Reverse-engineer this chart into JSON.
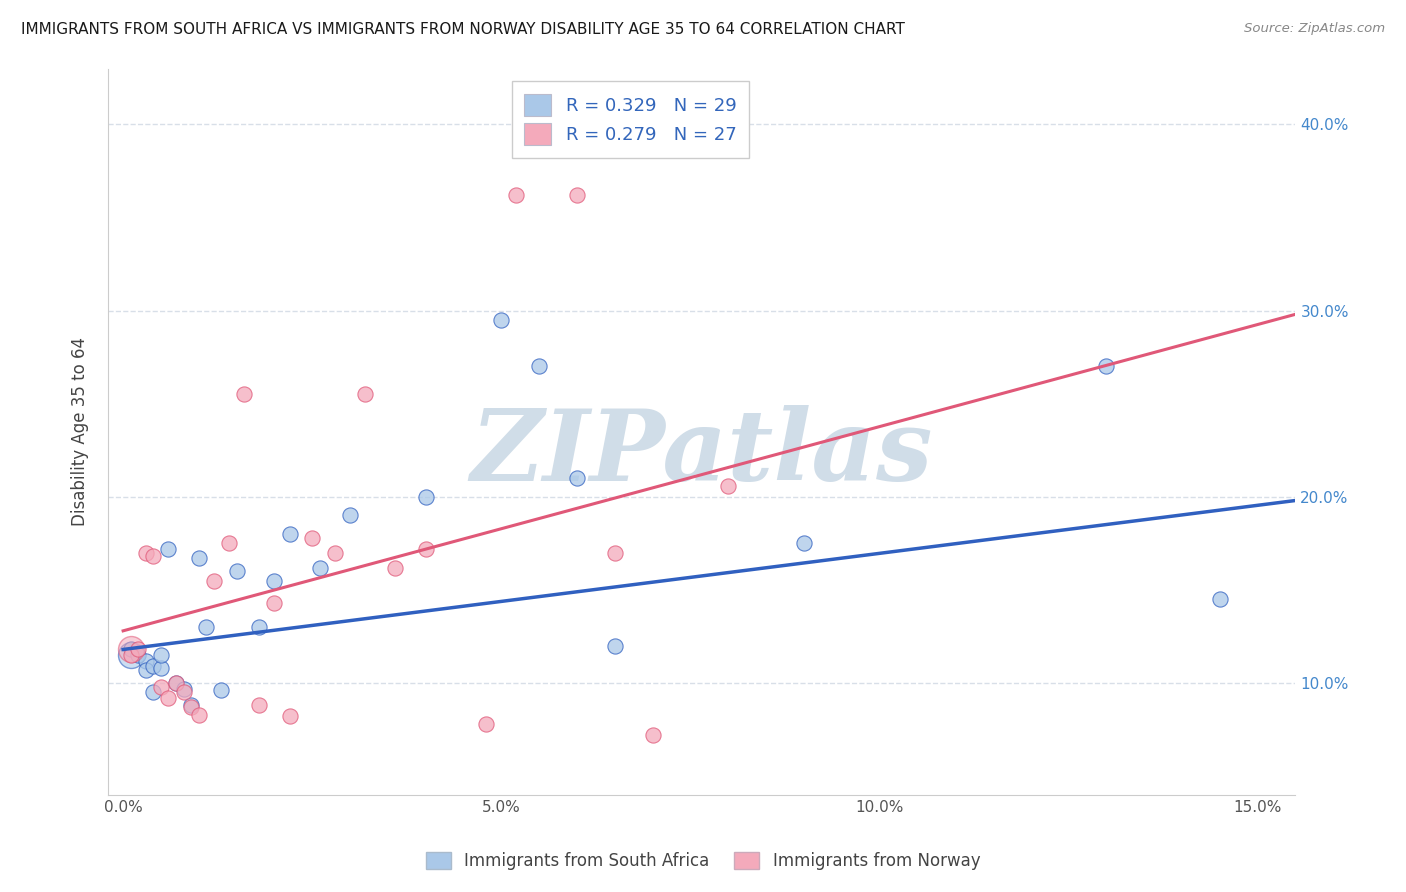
{
  "title": "IMMIGRANTS FROM SOUTH AFRICA VS IMMIGRANTS FROM NORWAY DISABILITY AGE 35 TO 64 CORRELATION CHART",
  "source": "Source: ZipAtlas.com",
  "ylabel": "Disability Age 35 to 64",
  "xlim": [
    -0.002,
    0.155
  ],
  "ylim": [
    0.04,
    0.43
  ],
  "xticks": [
    0.0,
    0.025,
    0.05,
    0.075,
    0.1,
    0.125,
    0.15
  ],
  "xticklabels": [
    "0.0%",
    "",
    "5.0%",
    "",
    "10.0%",
    "",
    "15.0%"
  ],
  "yticks": [
    0.1,
    0.2,
    0.3,
    0.4
  ],
  "yticklabels": [
    "10.0%",
    "20.0%",
    "30.0%",
    "40.0%"
  ],
  "R_blue": 0.329,
  "N_blue": 29,
  "R_pink": 0.279,
  "N_pink": 27,
  "color_blue": "#aac8e8",
  "color_pink": "#f4aabb",
  "line_color_blue": "#3060c0",
  "line_color_pink": "#e05878",
  "watermark": "ZIPatlas",
  "watermark_color": "#d0dde8",
  "legend_label_blue": "Immigrants from South Africa",
  "legend_label_pink": "Immigrants from Norway",
  "blue_scatter_x": [
    0.001,
    0.002,
    0.003,
    0.003,
    0.004,
    0.004,
    0.005,
    0.005,
    0.006,
    0.007,
    0.008,
    0.009,
    0.01,
    0.011,
    0.013,
    0.015,
    0.018,
    0.02,
    0.022,
    0.026,
    0.03,
    0.04,
    0.05,
    0.055,
    0.06,
    0.065,
    0.09,
    0.13,
    0.145
  ],
  "blue_scatter_y": [
    0.118,
    0.115,
    0.112,
    0.107,
    0.109,
    0.095,
    0.108,
    0.115,
    0.172,
    0.1,
    0.097,
    0.088,
    0.167,
    0.13,
    0.096,
    0.16,
    0.13,
    0.155,
    0.18,
    0.162,
    0.19,
    0.2,
    0.295,
    0.27,
    0.21,
    0.12,
    0.175,
    0.27,
    0.145
  ],
  "pink_scatter_x": [
    0.001,
    0.002,
    0.003,
    0.004,
    0.005,
    0.006,
    0.007,
    0.008,
    0.009,
    0.01,
    0.012,
    0.014,
    0.016,
    0.018,
    0.02,
    0.022,
    0.025,
    0.028,
    0.032,
    0.036,
    0.04,
    0.048,
    0.052,
    0.06,
    0.065,
    0.07,
    0.08
  ],
  "pink_scatter_y": [
    0.115,
    0.118,
    0.17,
    0.168,
    0.098,
    0.092,
    0.1,
    0.095,
    0.087,
    0.083,
    0.155,
    0.175,
    0.255,
    0.088,
    0.143,
    0.082,
    0.178,
    0.17,
    0.255,
    0.162,
    0.172,
    0.078,
    0.362,
    0.362,
    0.17,
    0.072,
    0.206
  ],
  "blue_trend_x": [
    0.0,
    0.155
  ],
  "blue_trend_y": [
    0.118,
    0.198
  ],
  "pink_trend_x": [
    0.0,
    0.155
  ],
  "pink_trend_y": [
    0.128,
    0.298
  ],
  "background_color": "#ffffff",
  "grid_color": "#d8dfe8",
  "scatter_size": 120,
  "scatter_alpha": 0.75,
  "big_dot_size": 350
}
